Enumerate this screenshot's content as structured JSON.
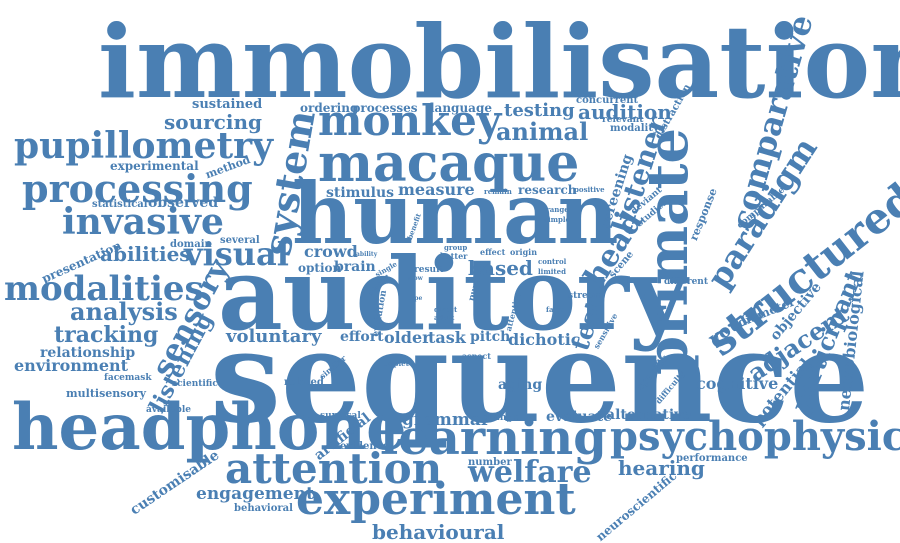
{
  "cloud": {
    "color": "#4a7fb3",
    "background": "#ffffff",
    "words": [
      "immobilisation",
      "sequence",
      "auditory",
      "human",
      "headphone",
      "learning",
      "macaque",
      "psychophysic",
      "experiment",
      "attention",
      "primate",
      "processing",
      "monkey",
      "pupillometry",
      "structured",
      "invasive",
      "comparative",
      "modalities",
      "system",
      "paradigm",
      "sensory",
      "listener",
      "visual",
      "analysis",
      "welfare",
      "behavioural",
      "head",
      "tracking",
      "listening",
      "adjacent",
      "participant",
      "neurobiological",
      "test",
      "potential",
      "animal",
      "audition",
      "testing",
      "sourcing",
      "abilities",
      "voluntary",
      "older",
      "task",
      "grammar",
      "hearing",
      "based",
      "crowd",
      "brain",
      "option",
      "effort",
      "pitch",
      "dichotic",
      "young",
      "cognitive",
      "alternative",
      "evaluate",
      "engagement",
      "customisable",
      "artificial",
      "relationship",
      "environment",
      "multisensory",
      "measure",
      "stimulus",
      "research",
      "screening",
      "diameter",
      "objective",
      "response",
      "aging",
      "sustained",
      "ordering",
      "processes",
      "language",
      "concurrent",
      "modality",
      "distraction",
      "relevant",
      "experimental",
      "method",
      "statistical",
      "observed",
      "presentation",
      "domain",
      "several",
      "facemask",
      "scientific",
      "available",
      "surgical",
      "evidence",
      "number",
      "behavioral",
      "performance",
      "neuroscientific",
      "related",
      "change",
      "different",
      "specific",
      "difficulty",
      "comparable",
      "studies",
      "deviant",
      "scene",
      "stream",
      "sensitive",
      "result",
      "evolution",
      "similar",
      "aspect",
      "triplet",
      "attentive",
      "pupil",
      "effect",
      "origin",
      "better",
      "group",
      "benefit",
      "ability",
      "single",
      "persist",
      "limited",
      "control",
      "range",
      "simple",
      "positive",
      "remain",
      "direct",
      "adult",
      "false",
      "slow",
      "type"
    ]
  }
}
